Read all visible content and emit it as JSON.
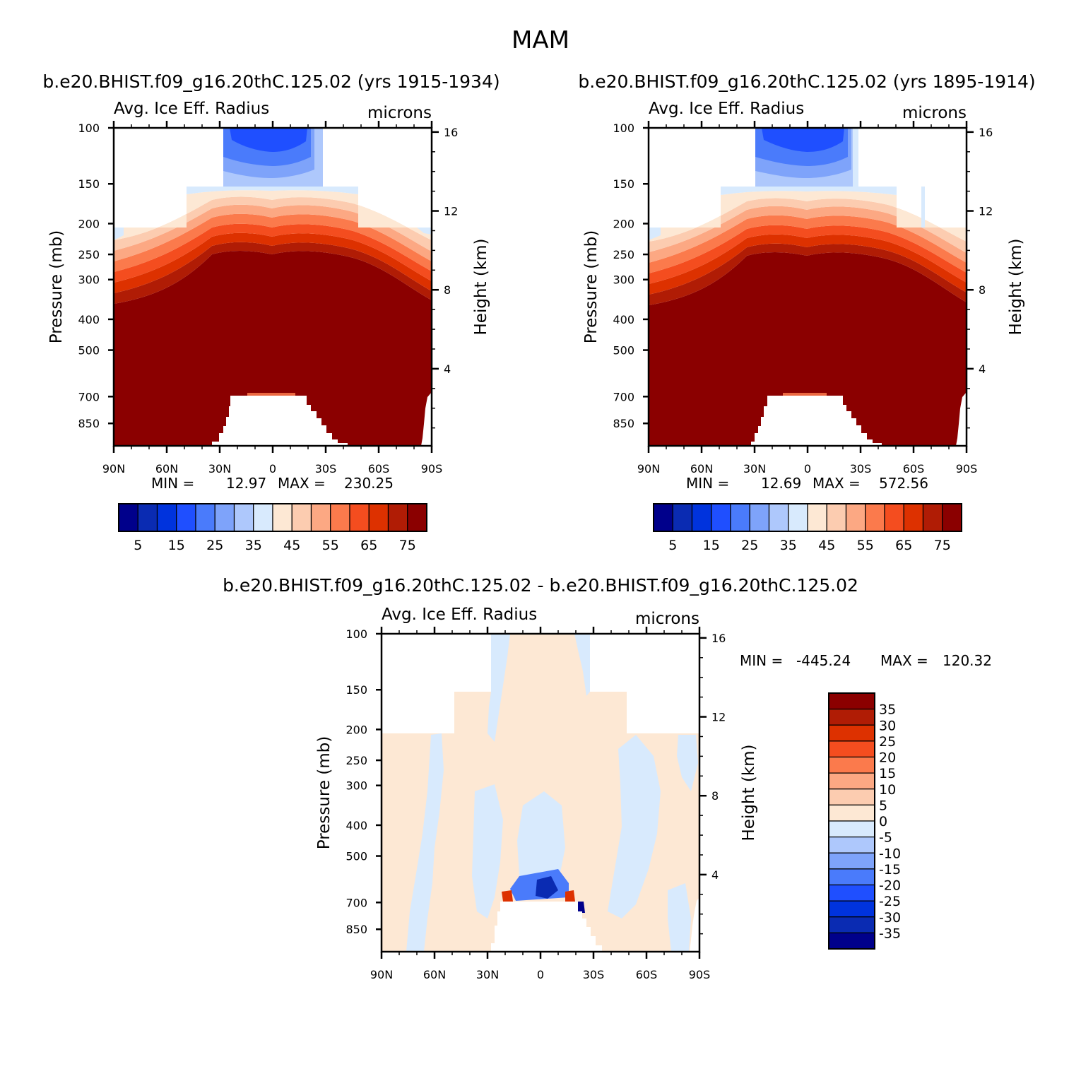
{
  "figure": {
    "title": "MAM"
  },
  "chart_data": [
    {
      "type": "heatmap",
      "kind": "filled-contour",
      "case_title": "b.e20.BHIST.f09_g16.20thC.125.02 (yrs 1915-1934)",
      "left_title": "Avg. Ice Eff. Radius",
      "right_title": "microns",
      "ylabel": "Pressure (mb)",
      "ylabel_right": "Height (km)",
      "x_ticks": [
        "90N",
        "60N",
        "30N",
        "0",
        "30S",
        "60S",
        "90S"
      ],
      "xlim": [
        90,
        -90
      ],
      "y_ticks": [
        100,
        150,
        200,
        250,
        300,
        400,
        500,
        700,
        850
      ],
      "ylim": [
        100,
        1000
      ],
      "y_scale": "log",
      "height_ticks": [
        4,
        8,
        12,
        16
      ],
      "min_label": "MIN =",
      "min_value": "12.97",
      "max_label": "MAX =",
      "max_value": "230.25",
      "colorbar": {
        "orientation": "horizontal",
        "levels": [
          "5",
          "10",
          "15",
          "20",
          "25",
          "30",
          "35",
          "40",
          "45",
          "50",
          "55",
          "60",
          "65",
          "70",
          "75"
        ],
        "labels": [
          "5",
          "15",
          "25",
          "35",
          "45",
          "55",
          "65",
          "75"
        ],
        "colors": [
          "#00008b",
          "#0a2bb2",
          "#0033dd",
          "#1f4fff",
          "#4a7bfb",
          "#7ea3fa",
          "#aec8fc",
          "#d8eafd",
          "#fde8d4",
          "#fcccb0",
          "#fca883",
          "#fb7a4c",
          "#f44d1f",
          "#dd3100",
          "#b01c05",
          "#8b0000"
        ]
      },
      "ice_profile": {
        "x": [
          90,
          60,
          30,
          0,
          -30,
          -60,
          -90
        ],
        "top_pressure_of_dense_ice": [
          330,
          315,
          270,
          250,
          255,
          290,
          325
        ]
      }
    },
    {
      "type": "heatmap",
      "kind": "filled-contour",
      "case_title": "b.e20.BHIST.f09_g16.20thC.125.02 (yrs 1895-1914)",
      "left_title": "Avg. Ice Eff. Radius",
      "right_title": "microns",
      "ylabel": "Pressure (mb)",
      "ylabel_right": "Height (km)",
      "x_ticks": [
        "90N",
        "60N",
        "30N",
        "0",
        "30S",
        "60S",
        "90S"
      ],
      "xlim": [
        90,
        -90
      ],
      "y_ticks": [
        100,
        150,
        200,
        250,
        300,
        400,
        500,
        700,
        850
      ],
      "ylim": [
        100,
        1000
      ],
      "y_scale": "log",
      "height_ticks": [
        4,
        8,
        12,
        16
      ],
      "min_label": "MIN =",
      "min_value": "12.69",
      "max_label": "MAX =",
      "max_value": "572.56",
      "colorbar": {
        "orientation": "horizontal",
        "levels": [
          "5",
          "10",
          "15",
          "20",
          "25",
          "30",
          "35",
          "40",
          "45",
          "50",
          "55",
          "60",
          "65",
          "70",
          "75"
        ],
        "labels": [
          "5",
          "15",
          "25",
          "35",
          "45",
          "55",
          "65",
          "75"
        ],
        "colors": [
          "#00008b",
          "#0a2bb2",
          "#0033dd",
          "#1f4fff",
          "#4a7bfb",
          "#7ea3fa",
          "#aec8fc",
          "#d8eafd",
          "#fde8d4",
          "#fcccb0",
          "#fca883",
          "#fb7a4c",
          "#f44d1f",
          "#dd3100",
          "#b01c05",
          "#8b0000"
        ]
      },
      "ice_profile": {
        "x": [
          90,
          60,
          30,
          0,
          -30,
          -60,
          -90
        ],
        "top_pressure_of_dense_ice": [
          335,
          318,
          270,
          252,
          255,
          295,
          330
        ]
      }
    },
    {
      "type": "heatmap",
      "kind": "filled-contour-difference",
      "case_title": "b.e20.BHIST.f09_g16.20thC.125.02 - b.e20.BHIST.f09_g16.20thC.125.02",
      "left_title": "Avg. Ice Eff. Radius",
      "right_title": "microns",
      "ylabel": "Pressure (mb)",
      "ylabel_right": "Height (km)",
      "x_ticks": [
        "90N",
        "60N",
        "30N",
        "0",
        "30S",
        "60S",
        "90S"
      ],
      "xlim": [
        90,
        -90
      ],
      "y_ticks": [
        100,
        150,
        200,
        250,
        300,
        400,
        500,
        700,
        850
      ],
      "ylim": [
        100,
        1000
      ],
      "y_scale": "log",
      "height_ticks": [
        4,
        8,
        12,
        16
      ],
      "min_label": "MIN =",
      "min_value": "-445.24",
      "max_label": "MAX =",
      "max_value": "120.32",
      "colorbar": {
        "orientation": "vertical",
        "levels": [
          "35",
          "30",
          "25",
          "20",
          "15",
          "10",
          "5",
          "0",
          "-5",
          "-10",
          "-15",
          "-20",
          "-25",
          "-30",
          "-35"
        ],
        "colors": [
          "#8b0000",
          "#b01c05",
          "#dd3100",
          "#f44d1f",
          "#fb7a4c",
          "#fca883",
          "#fcccb0",
          "#fde8d4",
          "#d8eafd",
          "#aec8fc",
          "#7ea3fa",
          "#4a7bfb",
          "#1f4fff",
          "#0033dd",
          "#0a2bb2",
          "#00008b"
        ]
      }
    }
  ]
}
